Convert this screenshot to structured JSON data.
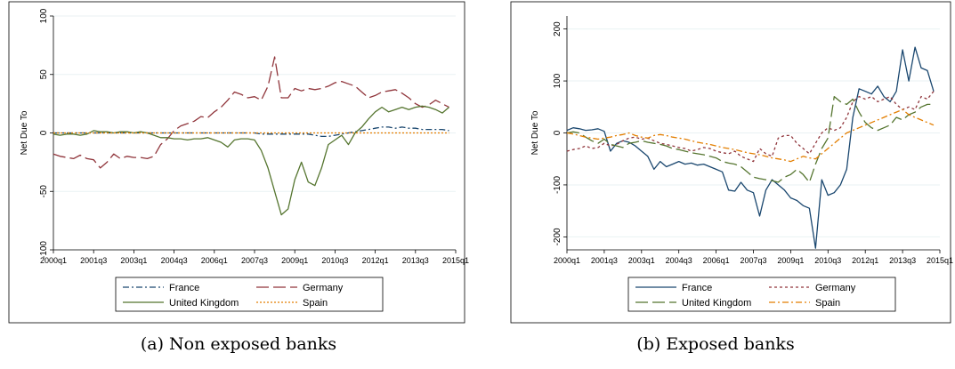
{
  "chart_data": [
    {
      "type": "line",
      "caption": "(a) Non exposed banks",
      "ylabel": "Net Due To",
      "xlabel": "",
      "ylim": [
        -100,
        100
      ],
      "yticks": [
        -100,
        -50,
        0,
        50,
        100
      ],
      "xticks": [
        "2000q1",
        "2001q3",
        "2003q1",
        "2004q3",
        "2006q1",
        "2007q3",
        "2009q1",
        "2010q3",
        "2012q1",
        "2013q3",
        "2015q1"
      ],
      "x": [
        "2000q1",
        "2000q2",
        "2000q3",
        "2000q4",
        "2001q1",
        "2001q2",
        "2001q3",
        "2001q4",
        "2002q1",
        "2002q2",
        "2002q3",
        "2002q4",
        "2003q1",
        "2003q2",
        "2003q3",
        "2003q4",
        "2004q1",
        "2004q2",
        "2004q3",
        "2004q4",
        "2005q1",
        "2005q2",
        "2005q3",
        "2005q4",
        "2006q1",
        "2006q2",
        "2006q3",
        "2006q4",
        "2007q1",
        "2007q2",
        "2007q3",
        "2007q4",
        "2008q1",
        "2008q2",
        "2008q3",
        "2008q4",
        "2009q1",
        "2009q2",
        "2009q3",
        "2009q4",
        "2010q1",
        "2010q2",
        "2010q3",
        "2010q4",
        "2011q1",
        "2011q2",
        "2011q3",
        "2011q4",
        "2012q1",
        "2012q2",
        "2012q3",
        "2012q4",
        "2013q1",
        "2013q2",
        "2013q3",
        "2013q4",
        "2014q1",
        "2014q2",
        "2014q3",
        "2014q4"
      ],
      "legend": {
        "position": "bottom",
        "columns": 2
      },
      "series": [
        {
          "name": "France",
          "color": "#1a476f",
          "dash": "7 3 2 3",
          "values": [
            0,
            0,
            0,
            0,
            0,
            0,
            0,
            0,
            0,
            0,
            0,
            0,
            0,
            0,
            0,
            0,
            0,
            0,
            0,
            0,
            0,
            0,
            0,
            0,
            0,
            0,
            0,
            0,
            0,
            0,
            0,
            -1,
            -1,
            -1,
            -1,
            -1,
            -1,
            -1,
            -1,
            -2,
            -3,
            -3,
            -2,
            -1,
            0,
            1,
            2,
            3,
            4,
            5,
            5,
            4,
            5,
            4,
            4,
            3,
            3,
            3,
            3,
            2
          ]
        },
        {
          "name": "Germany",
          "color": "#90353b",
          "dash": "14 5",
          "values": [
            -18,
            -20,
            -21,
            -22,
            -19,
            -22,
            -23,
            -30,
            -25,
            -18,
            -22,
            -20,
            -21,
            -21,
            -22,
            -20,
            -10,
            -5,
            2,
            6,
            8,
            10,
            14,
            13,
            18,
            22,
            28,
            35,
            33,
            30,
            31,
            28,
            40,
            65,
            30,
            30,
            38,
            36,
            38,
            37,
            38,
            40,
            43,
            44,
            42,
            40,
            35,
            30,
            32,
            35,
            36,
            37,
            34,
            30,
            25,
            22,
            24,
            28,
            25,
            22
          ]
        },
        {
          "name": "United Kingdom",
          "color": "#55752f",
          "dash": "",
          "values": [
            -1,
            -2,
            -1,
            -1,
            -2,
            -1,
            2,
            1,
            1,
            0,
            1,
            1,
            0,
            1,
            0,
            -2,
            -4,
            -4,
            -5,
            -5,
            -6,
            -5,
            -5,
            -4,
            -6,
            -8,
            -12,
            -6,
            -5,
            -5,
            -6,
            -15,
            -30,
            -50,
            -70,
            -65,
            -40,
            -25,
            -42,
            -45,
            -30,
            -10,
            -6,
            -2,
            -10,
            0,
            5,
            12,
            18,
            22,
            18,
            20,
            22,
            20,
            22,
            23,
            22,
            20,
            17,
            22
          ]
        },
        {
          "name": "Spain",
          "color": "#e37e00",
          "dash": "2 2",
          "values": [
            0,
            0,
            0,
            0,
            0,
            0,
            0,
            0,
            0,
            0,
            0,
            0,
            0,
            0,
            0,
            0,
            0,
            0,
            0,
            0,
            0,
            0,
            0,
            0,
            0,
            0,
            0,
            0,
            0,
            0,
            0,
            0,
            0,
            0,
            0,
            0,
            0,
            0,
            0,
            0,
            0,
            0,
            0,
            0,
            0,
            0,
            0,
            0,
            0,
            0,
            0,
            0,
            0,
            0,
            0,
            0,
            0,
            0,
            0,
            0
          ]
        }
      ]
    },
    {
      "type": "line",
      "caption": "(b) Exposed banks",
      "ylabel": "Net Due To",
      "xlabel": "",
      "ylim": [
        -225,
        225
      ],
      "yticks": [
        -200,
        -100,
        0,
        100,
        200
      ],
      "xticks": [
        "2000q1",
        "2001q3",
        "2003q1",
        "2004q3",
        "2006q1",
        "2007q3",
        "2009q1",
        "2010q3",
        "2012q1",
        "2013q3",
        "2015q1"
      ],
      "x": [
        "2000q1",
        "2000q2",
        "2000q3",
        "2000q4",
        "2001q1",
        "2001q2",
        "2001q3",
        "2001q4",
        "2002q1",
        "2002q2",
        "2002q3",
        "2002q4",
        "2003q1",
        "2003q2",
        "2003q3",
        "2003q4",
        "2004q1",
        "2004q2",
        "2004q3",
        "2004q4",
        "2005q1",
        "2005q2",
        "2005q3",
        "2005q4",
        "2006q1",
        "2006q2",
        "2006q3",
        "2006q4",
        "2007q1",
        "2007q2",
        "2007q3",
        "2007q4",
        "2008q1",
        "2008q2",
        "2008q3",
        "2008q4",
        "2009q1",
        "2009q2",
        "2009q3",
        "2009q4",
        "2010q1",
        "2010q2",
        "2010q3",
        "2010q4",
        "2011q1",
        "2011q2",
        "2011q3",
        "2011q4",
        "2012q1",
        "2012q2",
        "2012q3",
        "2012q4",
        "2013q1",
        "2013q2",
        "2013q3",
        "2013q4",
        "2014q1",
        "2014q2",
        "2014q3",
        "2014q4"
      ],
      "legend": {
        "position": "bottom",
        "columns": 2
      },
      "series": [
        {
          "name": "France",
          "color": "#1a476f",
          "dash": "",
          "values": [
            5,
            10,
            8,
            5,
            6,
            8,
            3,
            -35,
            -20,
            -15,
            -18,
            -25,
            -35,
            -45,
            -70,
            -55,
            -65,
            -60,
            -55,
            -60,
            -58,
            -62,
            -60,
            -65,
            -70,
            -75,
            -110,
            -112,
            -95,
            -110,
            -115,
            -160,
            -110,
            -90,
            -100,
            -110,
            -125,
            -130,
            -140,
            -145,
            -222,
            -90,
            -120,
            -115,
            -100,
            -70,
            30,
            85,
            80,
            75,
            90,
            70,
            60,
            80,
            160,
            100,
            165,
            125,
            120,
            80
          ]
        },
        {
          "name": "Germany",
          "color": "#90353b",
          "dash": "3 3",
          "values": [
            -35,
            -32,
            -30,
            -25,
            -30,
            -28,
            -20,
            -25,
            -22,
            -15,
            -10,
            -8,
            -12,
            -10,
            -15,
            -20,
            -22,
            -25,
            -28,
            -30,
            -35,
            -32,
            -28,
            -30,
            -35,
            -38,
            -40,
            -35,
            -45,
            -50,
            -55,
            -30,
            -40,
            -45,
            -10,
            -5,
            -5,
            -20,
            -30,
            -40,
            -20,
            0,
            10,
            5,
            10,
            30,
            60,
            70,
            65,
            70,
            60,
            65,
            70,
            55,
            45,
            50,
            45,
            70,
            65,
            80
          ]
        },
        {
          "name": "United Kingdom",
          "color": "#55752f",
          "dash": "14 5",
          "values": [
            0,
            2,
            0,
            -8,
            -15,
            -20,
            -12,
            -22,
            -25,
            -28,
            -20,
            -18,
            -15,
            -18,
            -20,
            -22,
            -25,
            -30,
            -32,
            -35,
            -38,
            -40,
            -42,
            -45,
            -48,
            -55,
            -58,
            -60,
            -65,
            -75,
            -85,
            -88,
            -90,
            -92,
            -95,
            -85,
            -80,
            -70,
            -80,
            -95,
            -60,
            -30,
            -10,
            70,
            60,
            55,
            65,
            40,
            20,
            10,
            5,
            10,
            15,
            30,
            25,
            35,
            40,
            50,
            55,
            55
          ]
        },
        {
          "name": "Spain",
          "color": "#e37e00",
          "dash": "7 3 2 3",
          "values": [
            0,
            -2,
            -5,
            -8,
            -10,
            -12,
            -10,
            -8,
            -5,
            -3,
            0,
            -5,
            -8,
            -10,
            -5,
            -3,
            -5,
            -8,
            -10,
            -12,
            -15,
            -18,
            -20,
            -22,
            -25,
            -28,
            -30,
            -32,
            -35,
            -38,
            -40,
            -42,
            -45,
            -48,
            -50,
            -52,
            -55,
            -50,
            -45,
            -48,
            -50,
            -40,
            -30,
            -20,
            -10,
            0,
            5,
            10,
            15,
            20,
            25,
            30,
            35,
            40,
            45,
            35,
            30,
            25,
            20,
            15
          ]
        }
      ]
    }
  ]
}
